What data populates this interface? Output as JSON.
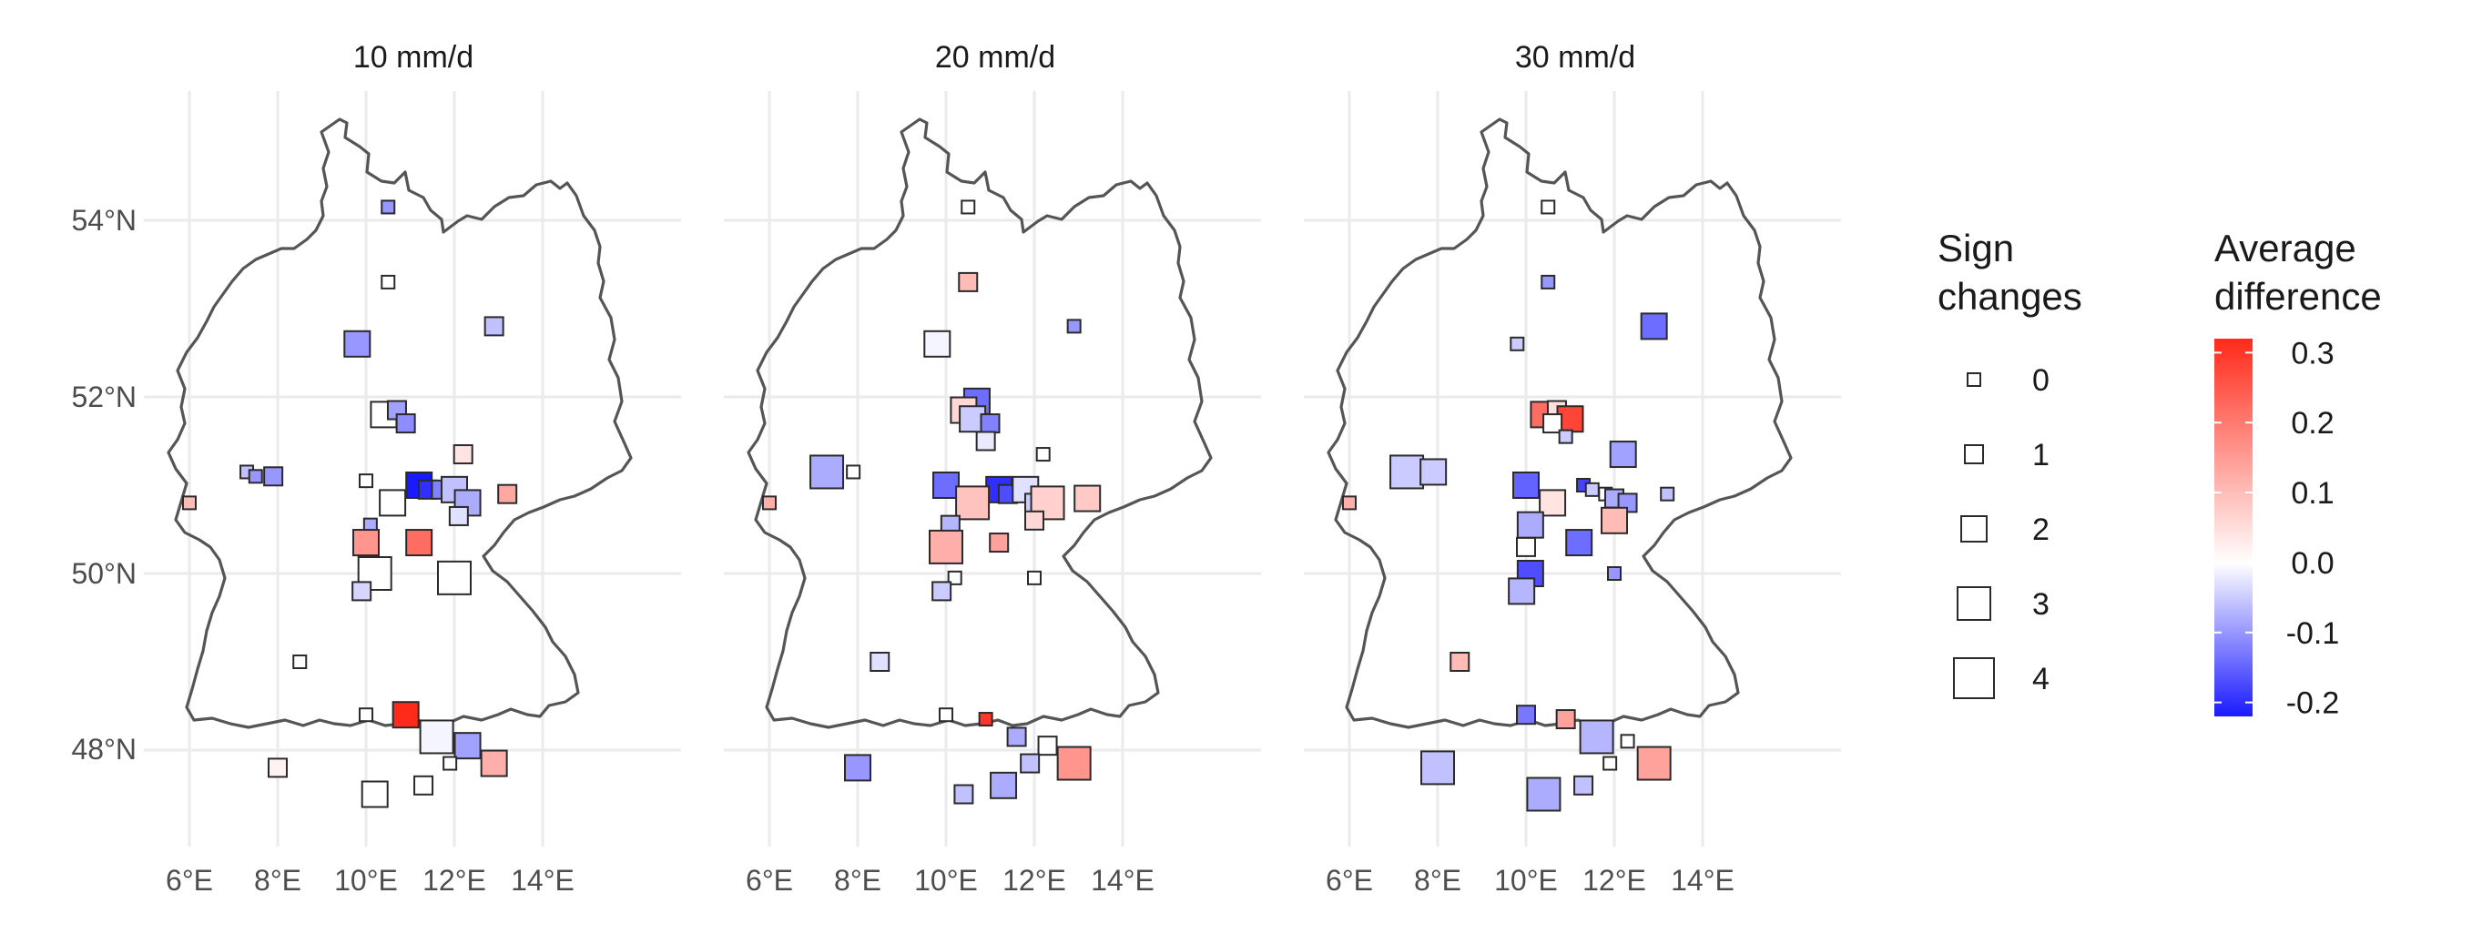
{
  "figure": {
    "facets": [
      "10 mm/d",
      "20 mm/d",
      "30 mm/d"
    ],
    "x_tick_labels": [
      "6°E",
      "8°E",
      "10°E",
      "12°E",
      "14°E"
    ],
    "y_tick_labels": [
      "54°N",
      "52°N",
      "50°N",
      "48°N"
    ],
    "size_legend": {
      "title_line1": "Sign",
      "title_line2": "changes",
      "labels": [
        "0",
        "1",
        "2",
        "3",
        "4"
      ]
    },
    "color_legend": {
      "title_line1": "Average",
      "title_line2": "difference",
      "labels": [
        "0.3",
        "0.2",
        "0.1",
        "0.0",
        "-0.1",
        "-0.2"
      ],
      "colors": {
        "low": "#1a1aff",
        "mid": "#ffffff",
        "high": "#ff2a1a"
      }
    }
  },
  "chart_data": {
    "type": "map-scatter",
    "x_unit": "°E",
    "y_unit": "°N",
    "xlim": [
      5.9,
      15.3
    ],
    "ylim": [
      47.0,
      55.4
    ],
    "x_ticks": [
      6,
      8,
      10,
      12,
      14
    ],
    "y_ticks": [
      54,
      52,
      50,
      48
    ],
    "value_range": [
      -0.22,
      0.32
    ],
    "panels": [
      {
        "facet": "10 mm/d",
        "stations": [
          {
            "lon": 10.5,
            "lat": 54.15,
            "sign_changes": 0,
            "diff": -0.1
          },
          {
            "lon": 10.5,
            "lat": 53.3,
            "sign_changes": 0,
            "diff": 0.0
          },
          {
            "lon": 9.8,
            "lat": 52.6,
            "sign_changes": 2,
            "diff": -0.1
          },
          {
            "lon": 12.9,
            "lat": 52.8,
            "sign_changes": 1,
            "diff": -0.06
          },
          {
            "lon": 10.4,
            "lat": 51.8,
            "sign_changes": 2,
            "diff": 0.0
          },
          {
            "lon": 10.7,
            "lat": 51.85,
            "sign_changes": 1,
            "diff": -0.09
          },
          {
            "lon": 10.9,
            "lat": 51.7,
            "sign_changes": 1,
            "diff": -0.11
          },
          {
            "lon": 7.3,
            "lat": 51.15,
            "sign_changes": 0,
            "diff": -0.06
          },
          {
            "lon": 7.5,
            "lat": 51.1,
            "sign_changes": 0,
            "diff": -0.1
          },
          {
            "lon": 7.9,
            "lat": 51.1,
            "sign_changes": 1,
            "diff": -0.1
          },
          {
            "lon": 10.0,
            "lat": 51.05,
            "sign_changes": 0,
            "diff": 0.0
          },
          {
            "lon": 11.2,
            "lat": 51.0,
            "sign_changes": 2,
            "diff": -0.22
          },
          {
            "lon": 11.4,
            "lat": 50.95,
            "sign_changes": 1,
            "diff": -0.2
          },
          {
            "lon": 11.7,
            "lat": 50.95,
            "sign_changes": 1,
            "diff": -0.12
          },
          {
            "lon": 12.0,
            "lat": 50.95,
            "sign_changes": 2,
            "diff": -0.06
          },
          {
            "lon": 12.2,
            "lat": 51.35,
            "sign_changes": 1,
            "diff": 0.04
          },
          {
            "lon": 12.3,
            "lat": 50.8,
            "sign_changes": 2,
            "diff": -0.08
          },
          {
            "lon": 12.1,
            "lat": 50.65,
            "sign_changes": 1,
            "diff": -0.03
          },
          {
            "lon": 13.2,
            "lat": 50.9,
            "sign_changes": 1,
            "diff": 0.13
          },
          {
            "lon": 10.6,
            "lat": 50.8,
            "sign_changes": 2,
            "diff": 0.0
          },
          {
            "lon": 10.1,
            "lat": 50.55,
            "sign_changes": 0,
            "diff": -0.08
          },
          {
            "lon": 10.0,
            "lat": 50.35,
            "sign_changes": 2,
            "diff": 0.16
          },
          {
            "lon": 11.2,
            "lat": 50.35,
            "sign_changes": 2,
            "diff": 0.22
          },
          {
            "lon": 10.2,
            "lat": 50.0,
            "sign_changes": 3,
            "diff": 0.0
          },
          {
            "lon": 9.9,
            "lat": 49.8,
            "sign_changes": 1,
            "diff": -0.04
          },
          {
            "lon": 12.0,
            "lat": 49.95,
            "sign_changes": 3,
            "diff": 0.0
          },
          {
            "lon": 8.5,
            "lat": 49.0,
            "sign_changes": 0,
            "diff": 0.0
          },
          {
            "lon": 10.0,
            "lat": 48.4,
            "sign_changes": 0,
            "diff": 0.0
          },
          {
            "lon": 10.9,
            "lat": 48.4,
            "sign_changes": 2,
            "diff": 0.32
          },
          {
            "lon": 11.6,
            "lat": 48.15,
            "sign_changes": 3,
            "diff": -0.01
          },
          {
            "lon": 12.3,
            "lat": 48.05,
            "sign_changes": 2,
            "diff": -0.09
          },
          {
            "lon": 11.9,
            "lat": 47.85,
            "sign_changes": 0,
            "diff": 0.0
          },
          {
            "lon": 12.9,
            "lat": 47.85,
            "sign_changes": 2,
            "diff": 0.12
          },
          {
            "lon": 8.0,
            "lat": 47.8,
            "sign_changes": 1,
            "diff": 0.02
          },
          {
            "lon": 10.2,
            "lat": 47.5,
            "sign_changes": 2,
            "diff": 0.0
          },
          {
            "lon": 11.3,
            "lat": 47.6,
            "sign_changes": 1,
            "diff": 0.0
          },
          {
            "lon": 6.0,
            "lat": 50.8,
            "sign_changes": 0,
            "diff": 0.1
          }
        ]
      },
      {
        "facet": "20 mm/d",
        "stations": [
          {
            "lon": 10.5,
            "lat": 54.15,
            "sign_changes": 0,
            "diff": 0.0
          },
          {
            "lon": 10.5,
            "lat": 53.3,
            "sign_changes": 1,
            "diff": 0.1
          },
          {
            "lon": 9.8,
            "lat": 52.6,
            "sign_changes": 2,
            "diff": -0.01
          },
          {
            "lon": 12.9,
            "lat": 52.8,
            "sign_changes": 0,
            "diff": -0.1
          },
          {
            "lon": 10.7,
            "lat": 51.95,
            "sign_changes": 2,
            "diff": -0.14
          },
          {
            "lon": 10.4,
            "lat": 51.85,
            "sign_changes": 2,
            "diff": 0.06
          },
          {
            "lon": 10.6,
            "lat": 51.75,
            "sign_changes": 2,
            "diff": -0.05
          },
          {
            "lon": 11.0,
            "lat": 51.7,
            "sign_changes": 1,
            "diff": -0.12
          },
          {
            "lon": 10.9,
            "lat": 51.5,
            "sign_changes": 1,
            "diff": -0.02
          },
          {
            "lon": 7.3,
            "lat": 51.15,
            "sign_changes": 3,
            "diff": -0.08
          },
          {
            "lon": 7.9,
            "lat": 51.15,
            "sign_changes": 0,
            "diff": 0.0
          },
          {
            "lon": 12.2,
            "lat": 51.35,
            "sign_changes": 0,
            "diff": 0.0
          },
          {
            "lon": 10.0,
            "lat": 51.0,
            "sign_changes": 2,
            "diff": -0.14
          },
          {
            "lon": 11.2,
            "lat": 50.95,
            "sign_changes": 2,
            "diff": -0.2
          },
          {
            "lon": 11.4,
            "lat": 50.9,
            "sign_changes": 1,
            "diff": -0.17
          },
          {
            "lon": 11.8,
            "lat": 50.95,
            "sign_changes": 2,
            "diff": -0.03
          },
          {
            "lon": 12.0,
            "lat": 50.8,
            "sign_changes": 1,
            "diff": -0.05
          },
          {
            "lon": 12.3,
            "lat": 50.8,
            "sign_changes": 3,
            "diff": 0.07
          },
          {
            "lon": 13.2,
            "lat": 50.85,
            "sign_changes": 2,
            "diff": 0.08
          },
          {
            "lon": 12.0,
            "lat": 50.6,
            "sign_changes": 1,
            "diff": 0.06
          },
          {
            "lon": 10.6,
            "lat": 50.8,
            "sign_changes": 3,
            "diff": 0.09
          },
          {
            "lon": 10.1,
            "lat": 50.55,
            "sign_changes": 1,
            "diff": -0.07
          },
          {
            "lon": 10.0,
            "lat": 50.3,
            "sign_changes": 3,
            "diff": 0.12
          },
          {
            "lon": 11.2,
            "lat": 50.35,
            "sign_changes": 1,
            "diff": 0.14
          },
          {
            "lon": 10.2,
            "lat": 49.95,
            "sign_changes": 0,
            "diff": 0.0
          },
          {
            "lon": 9.9,
            "lat": 49.8,
            "sign_changes": 1,
            "diff": -0.05
          },
          {
            "lon": 12.0,
            "lat": 49.95,
            "sign_changes": 0,
            "diff": 0.0
          },
          {
            "lon": 8.5,
            "lat": 49.0,
            "sign_changes": 1,
            "diff": -0.03
          },
          {
            "lon": 10.0,
            "lat": 48.4,
            "sign_changes": 0,
            "diff": 0.0
          },
          {
            "lon": 10.9,
            "lat": 48.35,
            "sign_changes": 0,
            "diff": 0.3
          },
          {
            "lon": 11.6,
            "lat": 48.15,
            "sign_changes": 1,
            "diff": -0.08
          },
          {
            "lon": 12.3,
            "lat": 48.05,
            "sign_changes": 1,
            "diff": 0.0
          },
          {
            "lon": 11.9,
            "lat": 47.85,
            "sign_changes": 1,
            "diff": -0.06
          },
          {
            "lon": 12.9,
            "lat": 47.85,
            "sign_changes": 3,
            "diff": 0.16
          },
          {
            "lon": 8.0,
            "lat": 47.8,
            "sign_changes": 2,
            "diff": -0.1
          },
          {
            "lon": 10.4,
            "lat": 47.5,
            "sign_changes": 1,
            "diff": -0.06
          },
          {
            "lon": 11.3,
            "lat": 47.6,
            "sign_changes": 2,
            "diff": -0.08
          },
          {
            "lon": 6.0,
            "lat": 50.8,
            "sign_changes": 0,
            "diff": 0.12
          }
        ]
      },
      {
        "facet": "30 mm/d",
        "stations": [
          {
            "lon": 10.5,
            "lat": 54.15,
            "sign_changes": 0,
            "diff": 0.0
          },
          {
            "lon": 10.5,
            "lat": 53.3,
            "sign_changes": 0,
            "diff": -0.1
          },
          {
            "lon": 9.8,
            "lat": 52.6,
            "sign_changes": 0,
            "diff": -0.05
          },
          {
            "lon": 12.9,
            "lat": 52.8,
            "sign_changes": 2,
            "diff": -0.14
          },
          {
            "lon": 10.4,
            "lat": 51.8,
            "sign_changes": 2,
            "diff": 0.22
          },
          {
            "lon": 10.7,
            "lat": 51.85,
            "sign_changes": 1,
            "diff": 0.05
          },
          {
            "lon": 11.0,
            "lat": 51.75,
            "sign_changes": 2,
            "diff": 0.28
          },
          {
            "lon": 10.6,
            "lat": 51.7,
            "sign_changes": 1,
            "diff": 0.0
          },
          {
            "lon": 10.9,
            "lat": 51.55,
            "sign_changes": 0,
            "diff": -0.05
          },
          {
            "lon": 7.3,
            "lat": 51.15,
            "sign_changes": 3,
            "diff": -0.05
          },
          {
            "lon": 7.9,
            "lat": 51.15,
            "sign_changes": 2,
            "diff": -0.05
          },
          {
            "lon": 12.2,
            "lat": 51.35,
            "sign_changes": 2,
            "diff": -0.09
          },
          {
            "lon": 10.0,
            "lat": 51.0,
            "sign_changes": 2,
            "diff": -0.15
          },
          {
            "lon": 11.3,
            "lat": 51.0,
            "sign_changes": 0,
            "diff": -0.18
          },
          {
            "lon": 11.5,
            "lat": 50.95,
            "sign_changes": 0,
            "diff": -0.05
          },
          {
            "lon": 11.8,
            "lat": 50.9,
            "sign_changes": 0,
            "diff": 0.0
          },
          {
            "lon": 12.0,
            "lat": 50.85,
            "sign_changes": 1,
            "diff": -0.08
          },
          {
            "lon": 12.3,
            "lat": 50.8,
            "sign_changes": 1,
            "diff": -0.1
          },
          {
            "lon": 13.2,
            "lat": 50.9,
            "sign_changes": 0,
            "diff": -0.06
          },
          {
            "lon": 12.0,
            "lat": 50.6,
            "sign_changes": 2,
            "diff": 0.1
          },
          {
            "lon": 10.6,
            "lat": 50.8,
            "sign_changes": 2,
            "diff": 0.04
          },
          {
            "lon": 10.1,
            "lat": 50.55,
            "sign_changes": 2,
            "diff": -0.08
          },
          {
            "lon": 11.2,
            "lat": 50.35,
            "sign_changes": 2,
            "diff": -0.14
          },
          {
            "lon": 10.0,
            "lat": 50.3,
            "sign_changes": 1,
            "diff": 0.0
          },
          {
            "lon": 10.1,
            "lat": 50.0,
            "sign_changes": 2,
            "diff": -0.17
          },
          {
            "lon": 9.9,
            "lat": 49.8,
            "sign_changes": 2,
            "diff": -0.07
          },
          {
            "lon": 12.0,
            "lat": 50.0,
            "sign_changes": 0,
            "diff": -0.1
          },
          {
            "lon": 8.5,
            "lat": 49.0,
            "sign_changes": 1,
            "diff": 0.1
          },
          {
            "lon": 10.0,
            "lat": 48.4,
            "sign_changes": 1,
            "diff": -0.13
          },
          {
            "lon": 10.9,
            "lat": 48.35,
            "sign_changes": 1,
            "diff": 0.14
          },
          {
            "lon": 11.6,
            "lat": 48.15,
            "sign_changes": 3,
            "diff": -0.07
          },
          {
            "lon": 12.3,
            "lat": 48.1,
            "sign_changes": 0,
            "diff": 0.0
          },
          {
            "lon": 11.9,
            "lat": 47.85,
            "sign_changes": 0,
            "diff": 0.0
          },
          {
            "lon": 12.9,
            "lat": 47.85,
            "sign_changes": 3,
            "diff": 0.14
          },
          {
            "lon": 8.0,
            "lat": 47.8,
            "sign_changes": 3,
            "diff": -0.06
          },
          {
            "lon": 10.4,
            "lat": 47.5,
            "sign_changes": 3,
            "diff": -0.08
          },
          {
            "lon": 11.3,
            "lat": 47.6,
            "sign_changes": 1,
            "diff": -0.06
          },
          {
            "lon": 6.0,
            "lat": 50.8,
            "sign_changes": 0,
            "diff": 0.12
          }
        ]
      }
    ]
  }
}
